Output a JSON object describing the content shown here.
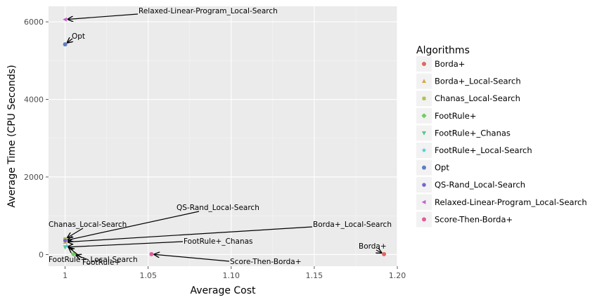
{
  "chart_data": {
    "type": "scatter",
    "xlabel": "Average Cost",
    "ylabel": "Average Time (CPU Seconds)",
    "xlim": [
      0.99,
      1.2
    ],
    "ylim": [
      -300,
      6400
    ],
    "x_ticks": [
      1,
      1.05,
      1.1,
      1.15,
      1.2
    ],
    "x_tick_labels": [
      "1",
      "1.05",
      "1.10",
      "1.15",
      "1.20"
    ],
    "y_ticks": [
      0,
      2000,
      4000,
      6000
    ],
    "y_tick_labels": [
      "0",
      "2000",
      "4000",
      "6000"
    ],
    "grid": true,
    "legend": {
      "title": "Algorithms",
      "placement": "right"
    },
    "series": [
      {
        "name": "Borda+",
        "color": "#e0665f",
        "marker": "circle",
        "x": 1.192,
        "y": 10,
        "label": "Borda+"
      },
      {
        "name": "Borda+_Local-Search",
        "color": "#d8a84a",
        "marker": "triangle-up",
        "x": 1.0,
        "y": 320,
        "label": "Borda+_Local-Search"
      },
      {
        "name": "Chanas_Local-Search",
        "color": "#b3c24d",
        "marker": "square",
        "x": 1.0,
        "y": 400,
        "label": "Chanas_Local-Search"
      },
      {
        "name": "FootRule+",
        "color": "#6ccf59",
        "marker": "diamond",
        "x": 1.005,
        "y": 10,
        "label": "FootRule+"
      },
      {
        "name": "FootRule+_Chanas",
        "color": "#52c98a",
        "marker": "triangle-down",
        "x": 1.0,
        "y": 190,
        "label": "FootRule+_Chanas"
      },
      {
        "name": "FootRule+_Local-Search",
        "color": "#4bc9d4",
        "marker": "star",
        "x": 1.001,
        "y": 220,
        "label": "FootRule+_Local-Search"
      },
      {
        "name": "Opt",
        "color": "#5b7fc4",
        "marker": "circle",
        "x": 1.0,
        "y": 5420,
        "label": "Opt"
      },
      {
        "name": "QS-Rand_Local-Search",
        "color": "#7166cf",
        "marker": "hexagon",
        "x": 1.0,
        "y": 360,
        "label": "QS-Rand_Local-Search"
      },
      {
        "name": "Relaxed-Linear-Program_Local-Search",
        "color": "#c65fd1",
        "marker": "triangle-left",
        "x": 1.0,
        "y": 6060,
        "label": "Relaxed-Linear-Program_Local-Search"
      },
      {
        "name": "Score-Then-Borda+",
        "color": "#e25d9f",
        "marker": "circle",
        "x": 1.052,
        "y": 10,
        "label": "Score-Then-Borda+"
      }
    ]
  }
}
